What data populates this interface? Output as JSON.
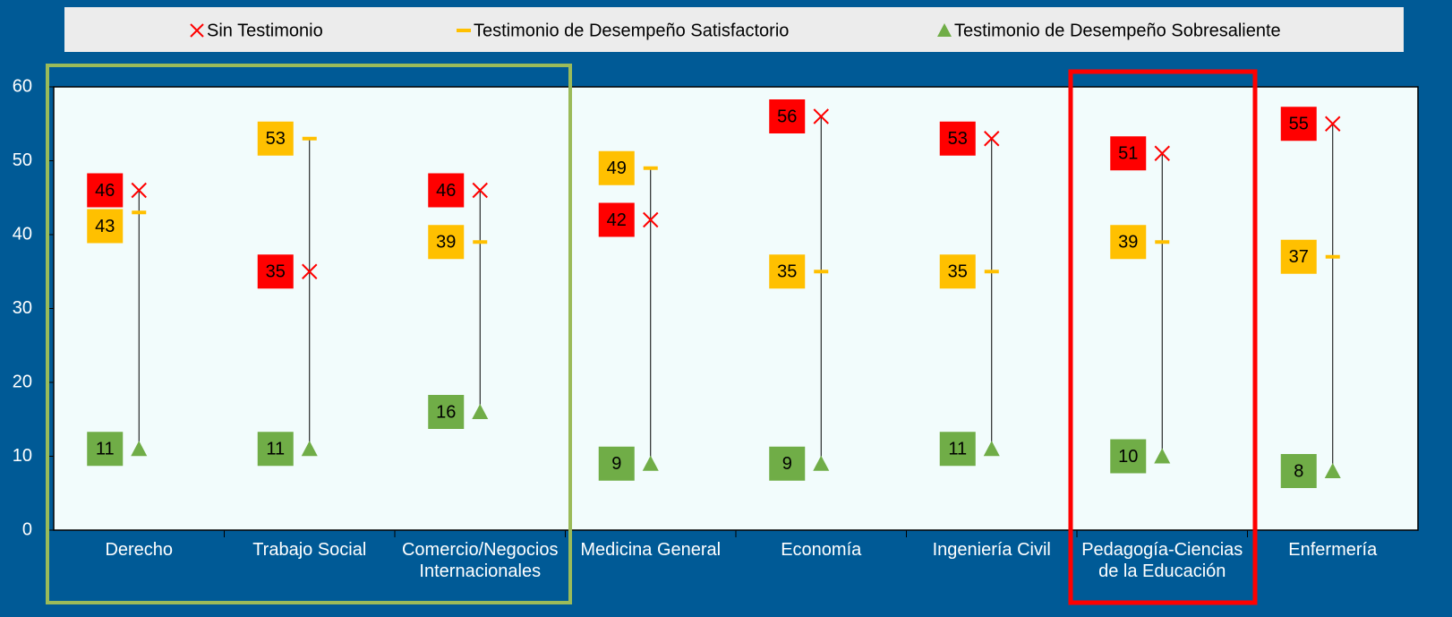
{
  "chart_data": {
    "type": "dot_range",
    "categories": [
      "Derecho",
      "Trabajo Social",
      "Comercio/Negocios Internacionales",
      "Medicina General",
      "Economía",
      "Ingeniería Civil",
      "Pedagogía-Ciencias de la Educación",
      "Enfermería"
    ],
    "series": [
      {
        "name": "Sin Testimonio",
        "color": "#ff0000",
        "marker": "x",
        "values": [
          46,
          35,
          46,
          42,
          56,
          53,
          51,
          55
        ]
      },
      {
        "name": "Testimonio de Desempeño Satisfactorio",
        "color": "#ffc000",
        "marker": "dash",
        "values": [
          43,
          53,
          39,
          49,
          35,
          35,
          39,
          37
        ]
      },
      {
        "name": "Testimonio de Desempeño Sobresaliente",
        "color": "#70ad47",
        "marker": "triangle",
        "values": [
          11,
          11,
          16,
          9,
          9,
          11,
          10,
          8
        ]
      }
    ],
    "ylim": [
      0,
      60
    ],
    "yticks": [
      0,
      10,
      20,
      30,
      40,
      50,
      60
    ],
    "legend": "top"
  }
}
